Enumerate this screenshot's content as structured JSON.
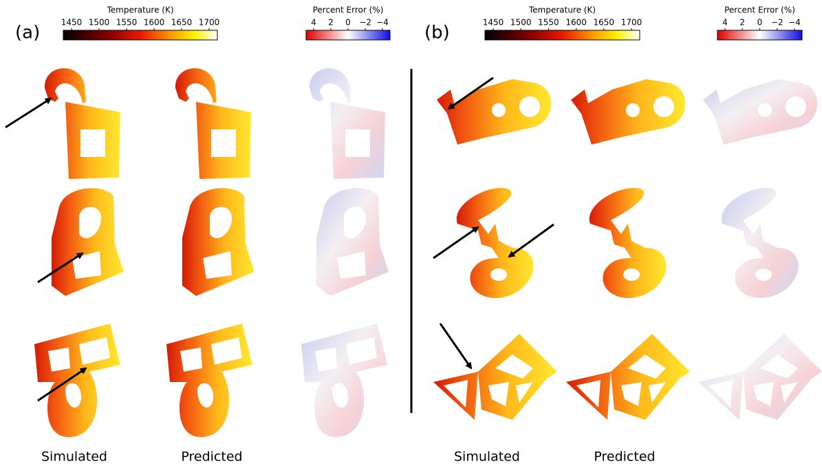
{
  "panels": [
    {
      "label": "(a)",
      "temperature_colorbar": {
        "title": "Temperature (K)",
        "ticks": [
          "1450",
          "1500",
          "1550",
          "1600",
          "1650",
          "1700"
        ]
      },
      "error_colorbar": {
        "title": "Percent Error (%)",
        "ticks": [
          "4",
          "2",
          "0",
          "−2",
          "−4"
        ]
      },
      "columns": [
        "Simulated",
        "Predicted"
      ]
    },
    {
      "label": "(b)",
      "temperature_colorbar": {
        "title": "Temperature (K)",
        "ticks": [
          "1450",
          "1500",
          "1550",
          "1600",
          "1650",
          "1700"
        ]
      },
      "error_colorbar": {
        "title": "Percent Error (%)",
        "ticks": [
          "4",
          "2",
          "0",
          "−2",
          "−4"
        ]
      },
      "columns": [
        "Simulated",
        "Predicted"
      ]
    }
  ]
}
